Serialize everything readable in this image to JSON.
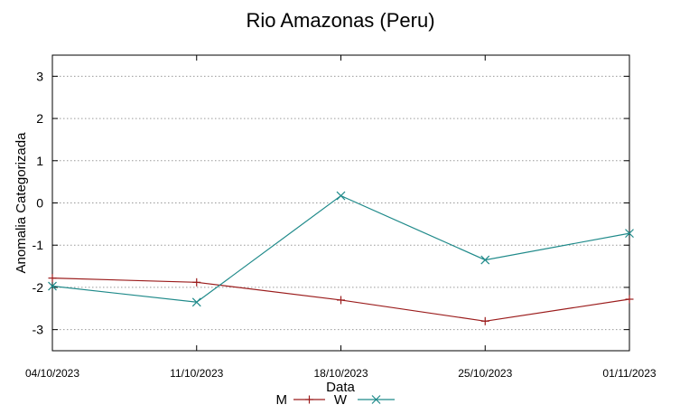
{
  "chart_data": {
    "type": "line",
    "title": "Rio Amazonas (Peru)",
    "xlabel": "Data",
    "ylabel": "Anomalia Categorizada",
    "categories": [
      "04/10/2023",
      "11/10/2023",
      "18/10/2023",
      "25/10/2023",
      "01/11/2023"
    ],
    "ylim": [
      -3.5,
      3.5
    ],
    "yticks": [
      -3,
      -2,
      -1,
      0,
      1,
      2,
      3
    ],
    "grid": true,
    "legend": "bottom-center",
    "series": [
      {
        "name": "M",
        "color": "#9b1c1c",
        "marker": "plus",
        "values": [
          -1.78,
          -1.88,
          -2.3,
          -2.8,
          -2.28
        ]
      },
      {
        "name": "W",
        "color": "#1f8a8a",
        "marker": "cross",
        "values": [
          -1.97,
          -2.35,
          0.17,
          -1.35,
          -0.72
        ]
      }
    ]
  }
}
